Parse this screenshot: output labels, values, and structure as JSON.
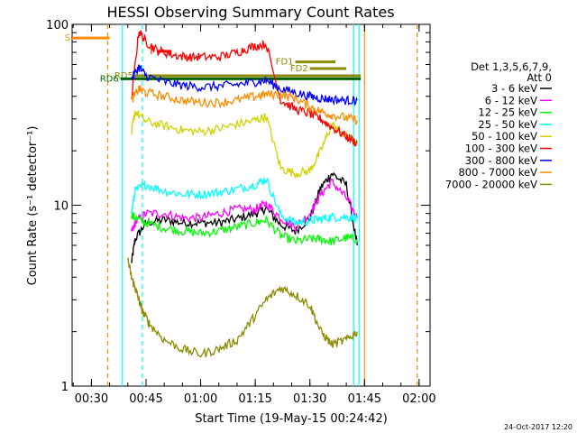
{
  "chart_data": {
    "type": "line",
    "title": "HESSI Observing Summary Count Rates",
    "xlabel": "Start Time (19-May-15 00:24:42)",
    "ylabel": "Count Rate (s⁻¹ detector⁻¹)",
    "y_scale": "log",
    "ylim": [
      1,
      100
    ],
    "xlim": [
      "00:24:42",
      "02:03:00"
    ],
    "x_ticks": [
      "00:30",
      "00:45",
      "01:00",
      "01:15",
      "01:30",
      "01:45",
      "02:00"
    ],
    "y_ticks": [
      "1",
      "10",
      "100"
    ],
    "grid": false,
    "legend_position": "right",
    "legend_header": [
      "Det 1,3,5,6,7,9,",
      "Att 0"
    ],
    "footer_stamp": "24-Oct-2017 12:20",
    "series": [
      {
        "name": "3 - 6 keV",
        "color": "#000000",
        "x": [
          "00:41",
          "00:42",
          "00:45",
          "00:50",
          "00:55",
          "01:00",
          "01:05",
          "01:10",
          "01:15",
          "01:18",
          "01:22",
          "01:26",
          "01:30",
          "01:33",
          "01:36",
          "01:40",
          "01:43"
        ],
        "y": [
          4.8,
          6.5,
          8.0,
          8.3,
          8.0,
          8.0,
          8.0,
          8.4,
          9.0,
          9.6,
          7.8,
          7.2,
          8.5,
          12.5,
          15.0,
          13.0,
          6.0
        ]
      },
      {
        "name": "6 - 12 keV",
        "color": "#ff00ff",
        "x": [
          "00:41",
          "00:42",
          "00:45",
          "00:50",
          "00:55",
          "01:00",
          "01:05",
          "01:10",
          "01:15",
          "01:18",
          "01:22",
          "01:26",
          "01:30",
          "01:33",
          "01:36",
          "01:40",
          "01:43"
        ],
        "y": [
          7.0,
          8.0,
          9.0,
          9.0,
          8.5,
          8.5,
          9.0,
          9.5,
          9.5,
          10.2,
          8.5,
          7.6,
          9.0,
          11.5,
          13.5,
          11.0,
          8.5
        ]
      },
      {
        "name": "12 - 25 keV",
        "color": "#00ff00",
        "x": [
          "00:41",
          "00:42",
          "00:45",
          "00:50",
          "00:55",
          "01:00",
          "01:05",
          "01:10",
          "01:15",
          "01:18",
          "01:22",
          "01:26",
          "01:30",
          "01:33",
          "01:36",
          "01:40",
          "01:43"
        ],
        "y": [
          9.0,
          8.5,
          8.0,
          7.5,
          7.2,
          7.0,
          7.2,
          7.6,
          8.0,
          8.3,
          6.8,
          6.3,
          6.5,
          6.5,
          6.3,
          6.6,
          6.5
        ]
      },
      {
        "name": "25 - 50 keV",
        "color": "#00ffff",
        "x": [
          "00:41",
          "00:42",
          "00:45",
          "00:50",
          "00:55",
          "01:00",
          "01:05",
          "01:10",
          "01:15",
          "01:18",
          "01:22",
          "01:26",
          "01:30",
          "01:33",
          "01:36",
          "01:40",
          "01:43"
        ],
        "y": [
          9.0,
          12.0,
          13.0,
          12.0,
          11.5,
          11.5,
          11.8,
          12.3,
          13.0,
          14.0,
          8.8,
          8.0,
          8.2,
          8.4,
          8.6,
          8.6,
          8.5
        ]
      },
      {
        "name": "50 - 100 keV",
        "color": "#d2d200",
        "x": [
          "00:41",
          "00:42",
          "00:45",
          "00:50",
          "00:55",
          "01:00",
          "01:05",
          "01:10",
          "01:15",
          "01:18",
          "01:22",
          "01:26",
          "01:30",
          "01:33",
          "01:36",
          "01:40",
          "01:43"
        ],
        "y": [
          25.0,
          33.0,
          29.0,
          27.5,
          26.0,
          25.5,
          26.5,
          28.0,
          29.5,
          31.0,
          16.0,
          15.0,
          15.5,
          20.0,
          28.0,
          24.0,
          22.0
        ]
      },
      {
        "name": "100 - 300 keV",
        "color": "#ff0000",
        "x": [
          "00:41",
          "00:43",
          "00:45",
          "00:48",
          "00:52",
          "00:56",
          "01:00",
          "01:05",
          "01:10",
          "01:14",
          "01:18",
          "01:22",
          "01:26",
          "01:30",
          "01:33",
          "01:36",
          "01:40",
          "01:43"
        ],
        "y": [
          38,
          92,
          80,
          72,
          68,
          66,
          66,
          66,
          70,
          75,
          78,
          38,
          34,
          32,
          30,
          27,
          24,
          22
        ]
      },
      {
        "name": "300 - 800 keV",
        "color": "#0000ff",
        "x": [
          "00:41",
          "00:43",
          "00:45",
          "00:50",
          "00:55",
          "01:00",
          "01:05",
          "01:10",
          "01:15",
          "01:18",
          "01:22",
          "01:26",
          "01:30",
          "01:33",
          "01:36",
          "01:40",
          "01:43"
        ],
        "y": [
          50,
          58,
          52,
          48,
          46,
          45,
          45.5,
          46.5,
          48,
          49,
          44,
          42,
          40,
          39,
          38.5,
          38,
          38
        ]
      },
      {
        "name": "800 - 7000 keV",
        "color": "#ff8c00",
        "x": [
          "00:41",
          "00:43",
          "00:45",
          "00:50",
          "00:55",
          "01:00",
          "01:05",
          "01:10",
          "01:15",
          "01:18",
          "01:22",
          "01:26",
          "01:30",
          "01:33",
          "01:36",
          "01:40",
          "01:43"
        ],
        "y": [
          38,
          44,
          42,
          40,
          38,
          37,
          37,
          38,
          40,
          41,
          41,
          39,
          35,
          33,
          31.5,
          30.5,
          29.5
        ]
      },
      {
        "name": "7000 - 20000 keV",
        "color": "#8b8b00",
        "x": [
          "00:40",
          "00:41",
          "00:42",
          "00:43",
          "00:44",
          "00:46",
          "00:50",
          "00:55",
          "01:00",
          "01:05",
          "01:10",
          "01:14",
          "01:18",
          "01:22",
          "01:26",
          "01:30",
          "01:33",
          "01:36",
          "01:40",
          "01:43"
        ],
        "y": [
          5.0,
          4.0,
          3.5,
          3.0,
          2.6,
          2.2,
          1.8,
          1.6,
          1.5,
          1.6,
          1.8,
          2.3,
          3.0,
          3.5,
          3.2,
          2.8,
          2.0,
          1.7,
          1.8,
          2.0
        ]
      }
    ],
    "annotations": [
      {
        "label": "S",
        "color": "#ff8c00",
        "x": [
          "00:24:42",
          "00:35"
        ],
        "y": 84
      },
      {
        "label": "F",
        "color": "#ff0000",
        "x": [
          "00:48",
          "00:52"
        ],
        "y": 71
      },
      {
        "label": "FD1",
        "color": "#8b8b00",
        "x": [
          "01:26",
          "01:37"
        ],
        "y": 62
      },
      {
        "label": "FD2",
        "color": "#8b8b00",
        "x": [
          "01:30",
          "01:40"
        ],
        "y": 57
      },
      {
        "label": "RD5",
        "color": "#8b8b00",
        "x": [
          "00:42",
          "01:44"
        ],
        "y": 52
      },
      {
        "label": "RD6",
        "color": "#006400",
        "x": [
          "00:38",
          "01:44"
        ],
        "y": 50
      }
    ]
  }
}
